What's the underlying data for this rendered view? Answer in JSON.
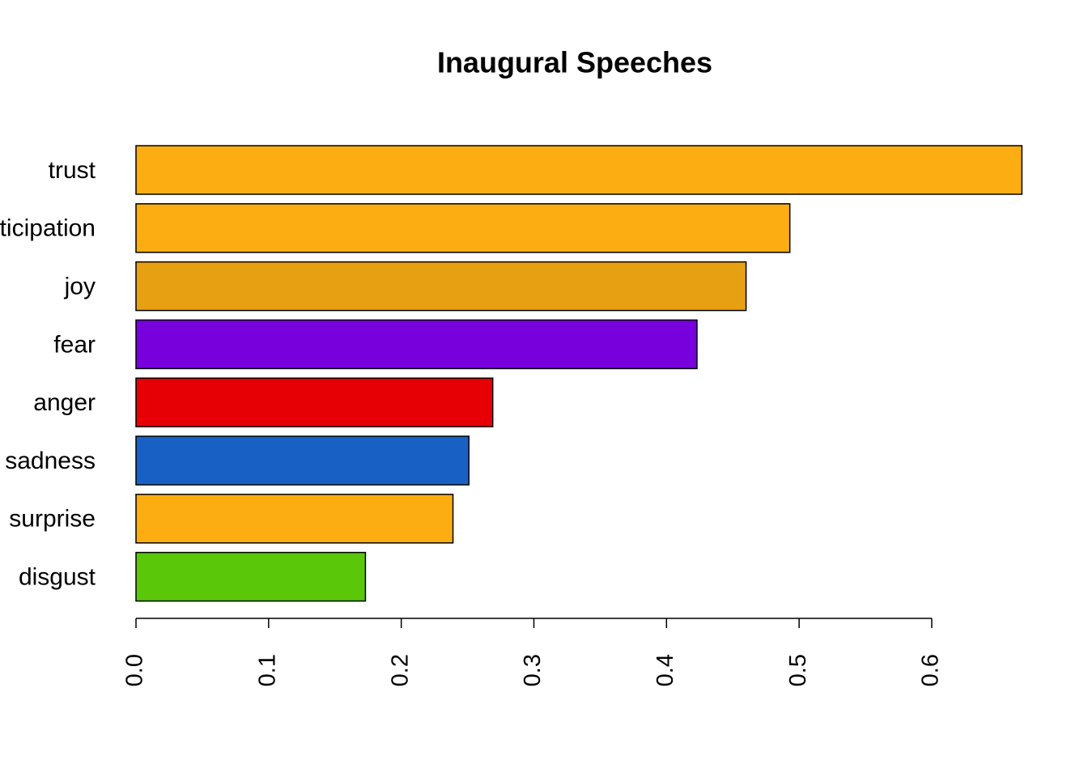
{
  "chart_data": {
    "type": "hbar",
    "title": "Inaugural Speeches",
    "categories": [
      "trust",
      "anticipation",
      "joy",
      "fear",
      "anger",
      "sadness",
      "surprise",
      "disgust"
    ],
    "values": [
      0.668,
      0.493,
      0.46,
      0.423,
      0.269,
      0.251,
      0.239,
      0.173
    ],
    "colors": [
      "#fbad12",
      "#fbad12",
      "#e8a013",
      "#7700dd",
      "#e60006",
      "#1960c4",
      "#fbad12",
      "#5ac708"
    ],
    "xlim": [
      0,
      0.7
    ],
    "xticks": [
      {
        "value": 0,
        "label": "0.0"
      },
      0.1,
      0.2,
      0.3,
      0.4,
      0.5,
      0.6
    ]
  }
}
